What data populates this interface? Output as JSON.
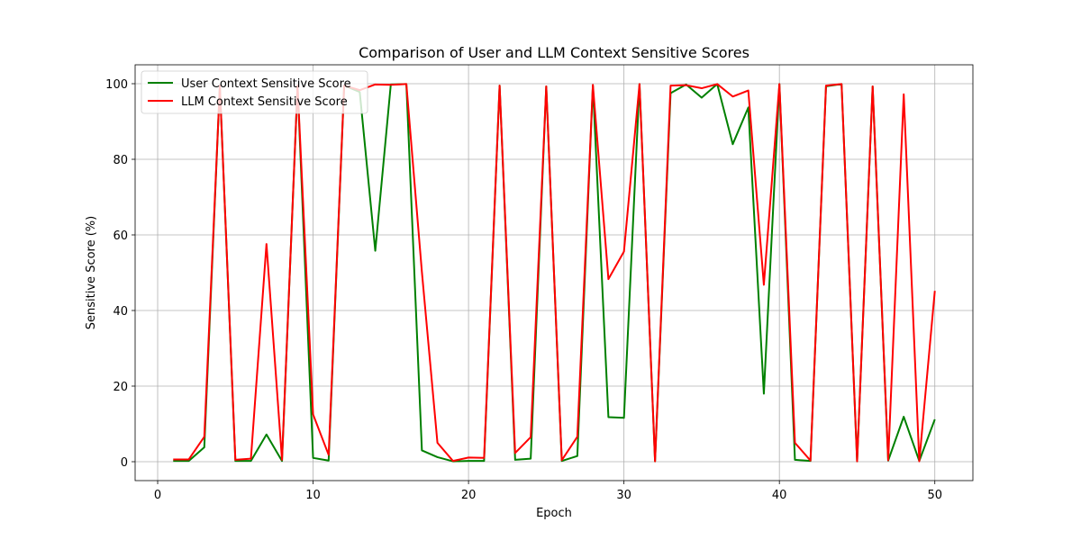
{
  "chart_data": {
    "type": "line",
    "title": "Comparison of User and LLM Context Sensitive Scores",
    "xlabel": "Epoch",
    "ylabel": "Sensitive Score (%)",
    "xlim": [
      -1.45,
      52.45
    ],
    "ylim": [
      -5,
      105
    ],
    "xticks": [
      0,
      10,
      20,
      30,
      40,
      50
    ],
    "yticks": [
      0,
      20,
      40,
      60,
      80,
      100
    ],
    "grid": true,
    "legend_position": "upper-left",
    "x": [
      1,
      2,
      3,
      4,
      5,
      6,
      7,
      8,
      9,
      10,
      11,
      12,
      13,
      14,
      15,
      16,
      17,
      18,
      19,
      20,
      21,
      22,
      23,
      24,
      25,
      26,
      27,
      28,
      29,
      30,
      31,
      32,
      33,
      34,
      35,
      36,
      37,
      38,
      39,
      40,
      41,
      42,
      43,
      44,
      45,
      46,
      47,
      48,
      49,
      50
    ],
    "series": [
      {
        "name": "User Context Sensitive Score",
        "color": "#008000",
        "values": [
          0.2,
          0.2,
          3.8,
          99.5,
          0.2,
          0.2,
          7.2,
          0.2,
          99.5,
          1.0,
          0.3,
          99.5,
          97.8,
          55.8,
          99.8,
          99.9,
          3.0,
          1.2,
          0.1,
          0.2,
          0.2,
          99.5,
          0.5,
          0.8,
          99.3,
          0.2,
          1.5,
          99.5,
          11.8,
          11.6,
          99.9,
          0.1,
          97.5,
          99.8,
          96.3,
          99.9,
          84.0,
          93.7,
          18.0,
          99.9,
          0.5,
          0.2,
          99.3,
          99.9,
          0.1,
          99.3,
          0.3,
          11.9,
          0.2,
          11.2
        ]
      },
      {
        "name": "LLM Context Sensitive Score",
        "color": "#ff0000",
        "values": [
          0.6,
          0.6,
          6.6,
          99.5,
          0.5,
          0.8,
          57.6,
          0.5,
          99.5,
          12.5,
          1.8,
          99.5,
          98.3,
          99.8,
          99.7,
          99.9,
          50.2,
          5.0,
          0.2,
          1.1,
          1.0,
          99.5,
          2.3,
          6.5,
          99.3,
          0.4,
          6.6,
          99.7,
          48.3,
          55.6,
          99.9,
          0.1,
          99.5,
          99.6,
          98.8,
          99.9,
          96.6,
          98.2,
          46.8,
          99.9,
          5.0,
          0.3,
          99.5,
          99.9,
          0.1,
          99.3,
          0.4,
          97.2,
          0.1,
          45.2
        ]
      }
    ]
  }
}
